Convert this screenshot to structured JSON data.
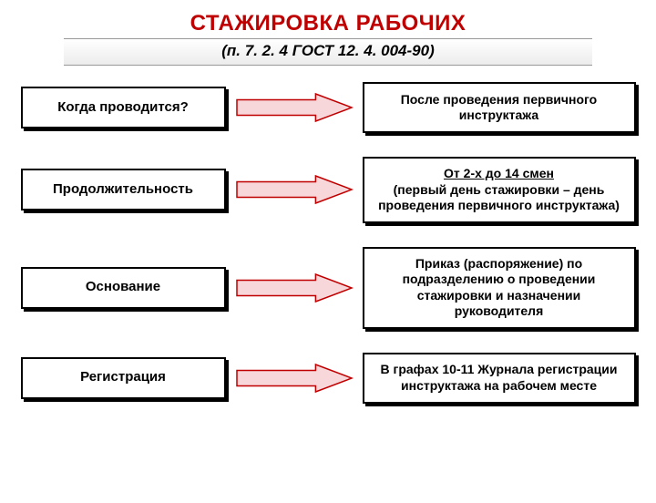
{
  "title": "СТАЖИРОВКА РАБОЧИХ",
  "title_color": "#c00000",
  "subtitle": "(п. 7. 2. 4 ГОСТ 12. 4. 004-90)",
  "arrow": {
    "fill": "#f8d7da",
    "stroke": "#c00000",
    "stroke_width": 1.5,
    "width": 130,
    "height": 34
  },
  "rows": [
    {
      "left": "Когда проводится?",
      "right": "После проведения первичного инструктажа",
      "right_underline": ""
    },
    {
      "left": "Продолжительность",
      "right": "(первый день стажировки – день проведения первичного инструктажа)",
      "right_underline": "От 2-х до 14 смен"
    },
    {
      "left": "Основание",
      "right": "Приказ (распоряжение) по подразделению о проведении стажировки и назначении руководителя",
      "right_underline": ""
    },
    {
      "left": "Регистрация",
      "right": "В графах 10-11 Журнала регистрации инструктажа на рабочем месте",
      "right_underline": ""
    }
  ],
  "box_style": {
    "border_color": "#000000",
    "shadow_color": "#000000",
    "background": "#ffffff"
  }
}
